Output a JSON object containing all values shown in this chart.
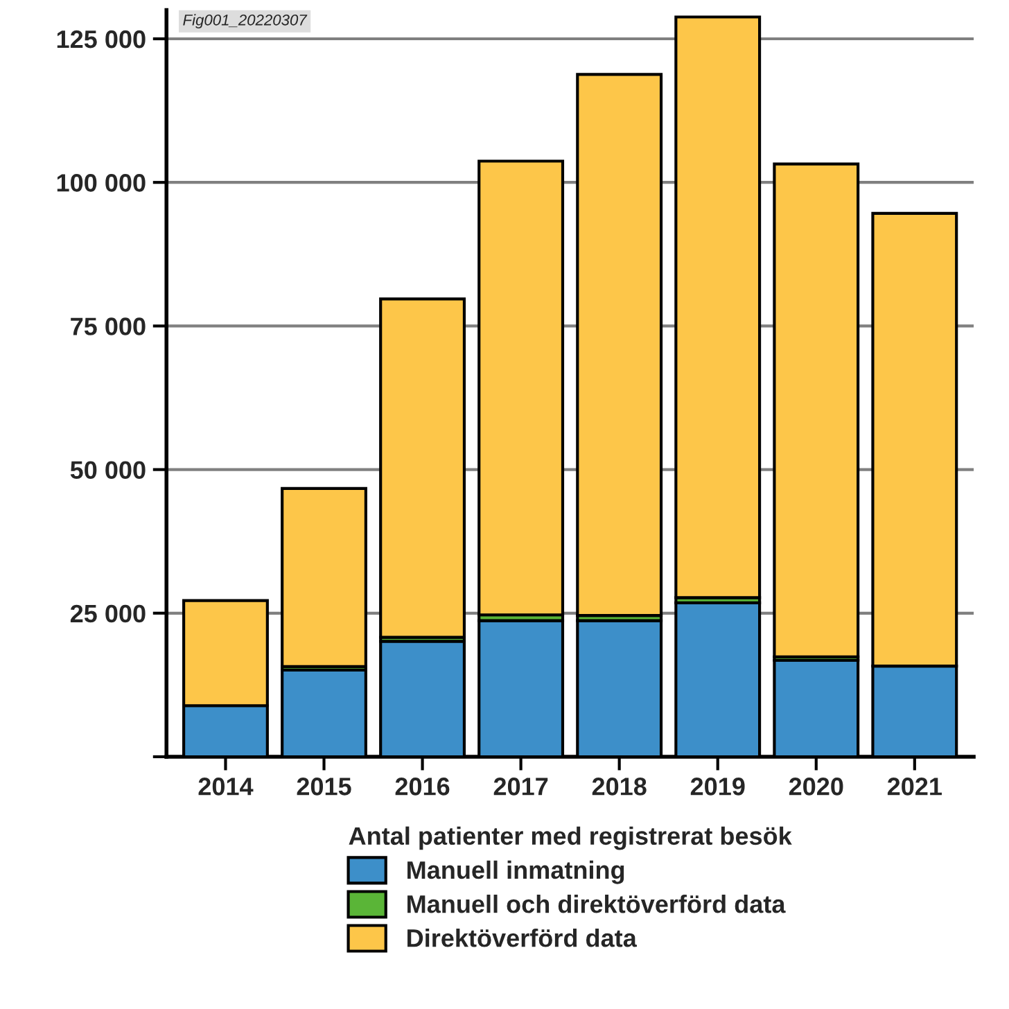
{
  "chart_data": {
    "type": "bar",
    "stacked": true,
    "categories": [
      "2014",
      "2015",
      "2016",
      "2017",
      "2018",
      "2019",
      "2020",
      "2021"
    ],
    "series": [
      {
        "name": "Manuell inmatning",
        "color": "#3d8fc9",
        "values": [
          8900,
          15100,
          20100,
          23700,
          23700,
          26800,
          16800,
          15800
        ]
      },
      {
        "name": "Manuell och direktöverförd data",
        "color": "#5ab537",
        "values": [
          null,
          600,
          700,
          1000,
          900,
          900,
          600,
          null
        ]
      },
      {
        "name": "Direktöverförd data",
        "color": "#fdc649",
        "values": [
          18300,
          31000,
          58900,
          79000,
          94200,
          101100,
          85800,
          78800
        ]
      }
    ],
    "ylim": [
      0,
      130000
    ],
    "yticks": [
      {
        "value": 0,
        "label": null
      },
      {
        "value": 25000,
        "label": "25 000"
      },
      {
        "value": 50000,
        "label": "50 000"
      },
      {
        "value": 75000,
        "label": "75 000"
      },
      {
        "value": 100000,
        "label": "100 000"
      },
      {
        "value": 125000,
        "label": "125 000"
      }
    ],
    "grid": "y",
    "legend": "bottom",
    "legend_title": "Antal patienter med registrerat besök",
    "annotations": [
      "Fig001_20220307"
    ]
  }
}
